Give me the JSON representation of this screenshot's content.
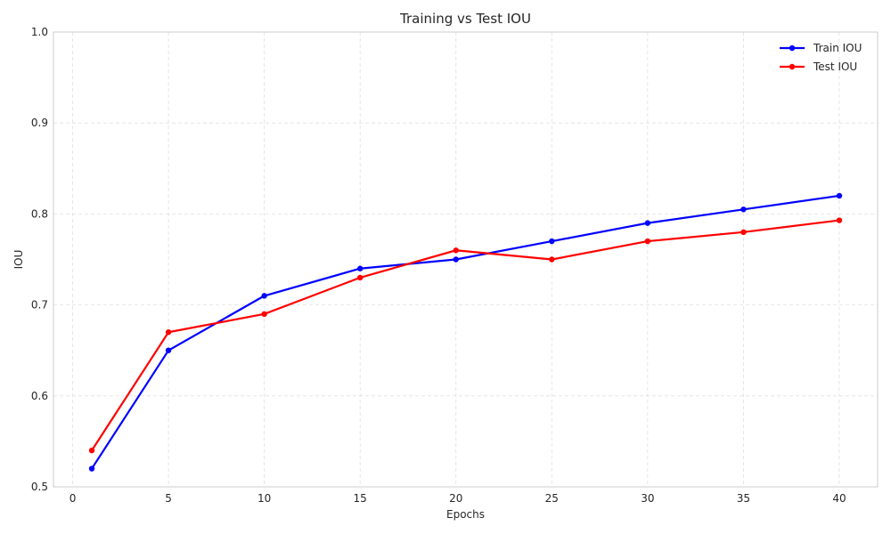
{
  "chart_data": {
    "type": "line",
    "title": "Training vs Test IOU",
    "xlabel": "Epochs",
    "ylabel": "IOU",
    "xlim": [
      -1,
      42
    ],
    "ylim": [
      0.5,
      1.0
    ],
    "xticks": [
      0,
      5,
      10,
      15,
      20,
      25,
      30,
      35,
      40
    ],
    "yticks": [
      0.5,
      0.6,
      0.7,
      0.8,
      0.9,
      1.0
    ],
    "xtick_labels": [
      "0",
      "5",
      "10",
      "15",
      "20",
      "25",
      "30",
      "35",
      "40"
    ],
    "ytick_labels": [
      "0.5",
      "0.6",
      "0.7",
      "0.8",
      "0.9",
      "1.0"
    ],
    "grid": true,
    "legend_position": "top-right",
    "x": [
      1,
      5,
      10,
      15,
      20,
      25,
      30,
      35,
      40
    ],
    "series": [
      {
        "name": "Train IOU",
        "color": "#0000ff",
        "values": [
          0.52,
          0.65,
          0.71,
          0.74,
          0.75,
          0.77,
          0.79,
          0.805,
          0.82
        ]
      },
      {
        "name": "Test IOU",
        "color": "#ff0000",
        "values": [
          0.54,
          0.67,
          0.69,
          0.73,
          0.76,
          0.75,
          0.77,
          0.78,
          0.793
        ]
      }
    ]
  }
}
